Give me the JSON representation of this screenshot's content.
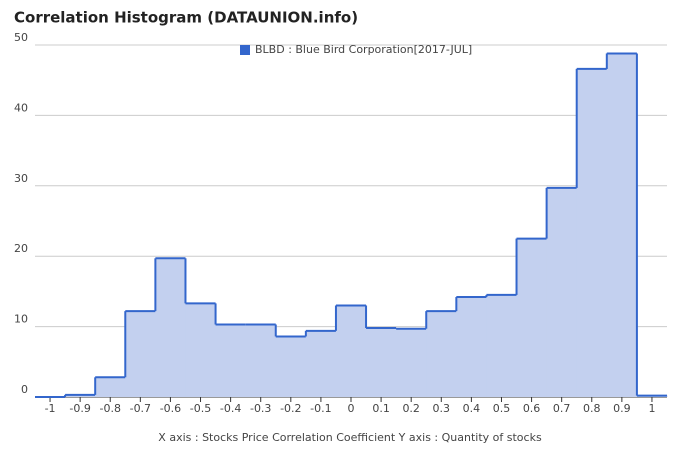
{
  "chart_data": {
    "type": "step-area",
    "title": "Correlation Histogram (DATAUNION.info)",
    "axis_label": "X axis : Stocks Price Correlation Coefficient  Y axis : Quantity of stocks",
    "x": [
      -1,
      -0.9,
      -0.8,
      -0.7,
      -0.6,
      -0.5,
      -0.4,
      -0.3,
      -0.2,
      -0.1,
      0,
      0.1,
      0.2,
      0.3,
      0.4,
      0.5,
      0.6,
      0.7,
      0.8,
      0.9,
      1
    ],
    "series": [
      {
        "name": "BLBD : Blue Bird Corporation[2017-JUL]",
        "color": "#3366cc",
        "fill": "#c3d0ef",
        "values": [
          0,
          0.3,
          2.8,
          12.2,
          19.7,
          13.3,
          10.3,
          10.3,
          8.6,
          9.4,
          13.0,
          9.8,
          9.7,
          12.2,
          14.2,
          14.5,
          22.5,
          29.7,
          46.6,
          48.8,
          0.2
        ]
      }
    ],
    "xlim": [
      -1.05,
      1.05
    ],
    "xticks": [
      -1,
      -0.9,
      -0.8,
      -0.7,
      -0.6,
      -0.5,
      -0.4,
      -0.3,
      -0.2,
      -0.1,
      0,
      0.1,
      0.2,
      0.3,
      0.4,
      0.5,
      0.6,
      0.7,
      0.8,
      0.9,
      1
    ],
    "ylim": [
      0,
      50
    ],
    "yticks": [
      0,
      10,
      20,
      30,
      40,
      50
    ],
    "grid": true,
    "legend": "top"
  }
}
